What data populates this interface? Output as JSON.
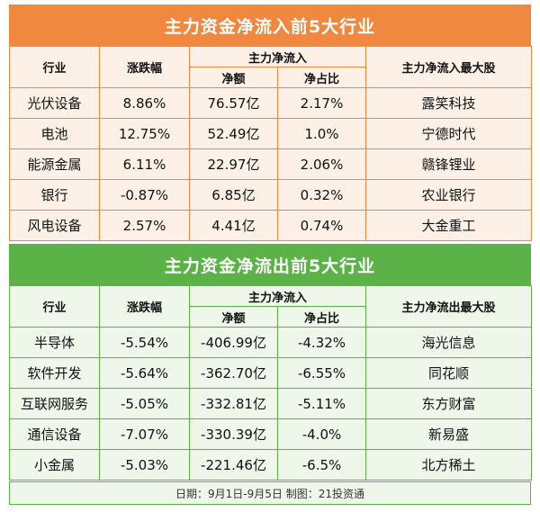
{
  "inflow": {
    "title": "主力资金净流入前5大行业",
    "headers": {
      "industry": "行业",
      "change": "涨跌幅",
      "net_group": "主力净流入",
      "net_amount": "净额",
      "net_ratio": "净占比",
      "top_stock": "主力净流入最大股"
    },
    "rows": [
      {
        "industry": "光伏设备",
        "change": "8.86%",
        "amount": "76.57亿",
        "ratio": "2.17%",
        "stock": "露笑科技"
      },
      {
        "industry": "电池",
        "change": "12.75%",
        "amount": "52.49亿",
        "ratio": "1.0%",
        "stock": "宁德时代"
      },
      {
        "industry": "能源金属",
        "change": "6.11%",
        "amount": "22.97亿",
        "ratio": "2.06%",
        "stock": "赣锋锂业"
      },
      {
        "industry": "银行",
        "change": "-0.87%",
        "amount": "6.85亿",
        "ratio": "0.32%",
        "stock": "农业银行"
      },
      {
        "industry": "风电设备",
        "change": "2.57%",
        "amount": "4.41亿",
        "ratio": "0.74%",
        "stock": "大金重工"
      }
    ]
  },
  "outflow": {
    "title": "主力资金净流出前5大行业",
    "headers": {
      "industry": "行业",
      "change": "涨跌幅",
      "net_group": "主力净流入",
      "net_amount": "净额",
      "net_ratio": "净占比",
      "top_stock": "主力净流出最大股"
    },
    "rows": [
      {
        "industry": "半导体",
        "change": "-5.54%",
        "amount": "-406.99亿",
        "ratio": "-4.32%",
        "stock": "海光信息"
      },
      {
        "industry": "软件开发",
        "change": "-5.64%",
        "amount": "-362.70亿",
        "ratio": "-6.55%",
        "stock": "同花顺"
      },
      {
        "industry": "互联网服务",
        "change": "-5.05%",
        "amount": "-332.81亿",
        "ratio": "-5.11%",
        "stock": "东方财富"
      },
      {
        "industry": "通信设备",
        "change": "-7.07%",
        "amount": "-330.39亿",
        "ratio": "-4.0%",
        "stock": "新易盛"
      },
      {
        "industry": "小金属",
        "change": "-5.03%",
        "amount": "-221.46亿",
        "ratio": "-6.5%",
        "stock": "北方稀土"
      }
    ]
  },
  "footer": "日期：9月1日-9月5日 制图：21投资通",
  "colors": {
    "inflow_accent": "#f0893f",
    "inflow_bg": "#fdf0e6",
    "outflow_accent": "#5bb347",
    "outflow_bg": "#eef7ea"
  }
}
